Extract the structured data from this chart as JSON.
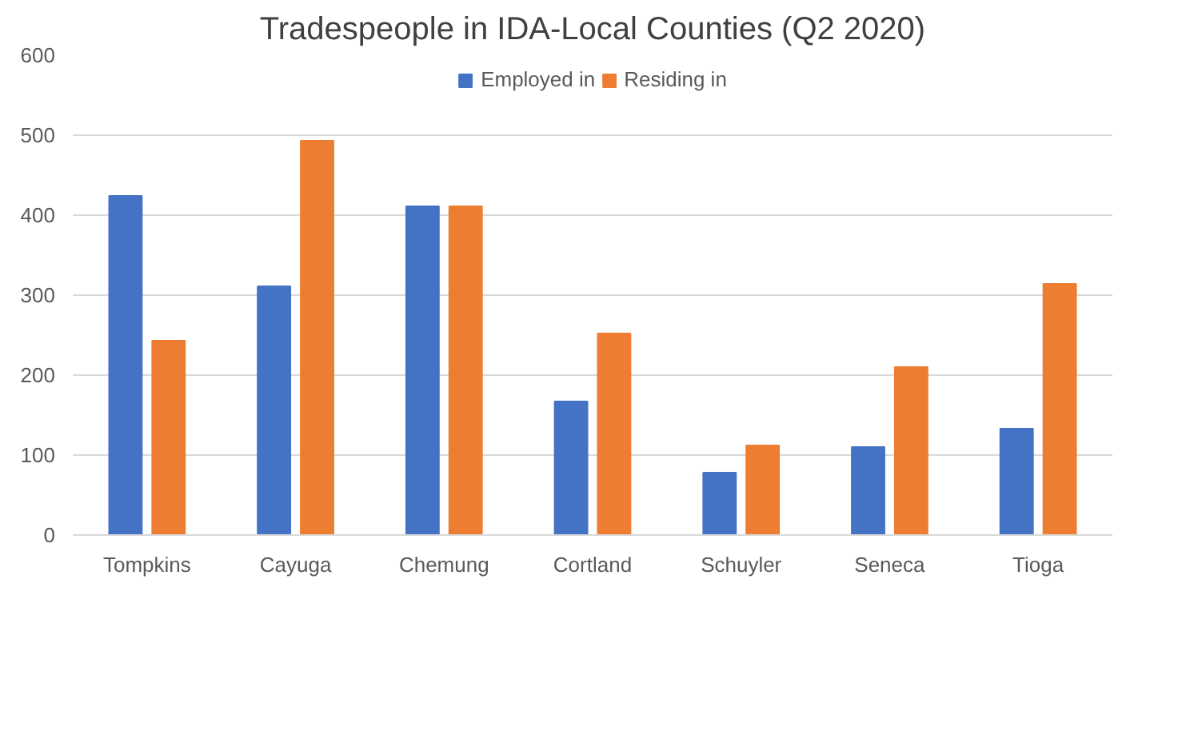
{
  "chart_data": {
    "type": "bar",
    "title": "Tradespeople in IDA-Local Counties (Q2 2020)",
    "categories": [
      "Tompkins",
      "Cayuga",
      "Chemung",
      "Cortland",
      "Schuyler",
      "Seneca",
      "Tioga"
    ],
    "series": [
      {
        "name": "Employed in",
        "color": "#4472c4",
        "values": [
          424,
          311,
          411,
          167,
          78,
          110,
          133
        ]
      },
      {
        "name": "Residing in",
        "color": "#ed7d31",
        "values": [
          243,
          493,
          411,
          252,
          112,
          210,
          314
        ]
      }
    ],
    "ylim": [
      0,
      600
    ],
    "yticks": [
      0,
      100,
      200,
      300,
      400,
      500,
      600
    ],
    "grid": "y",
    "legend": "top"
  }
}
